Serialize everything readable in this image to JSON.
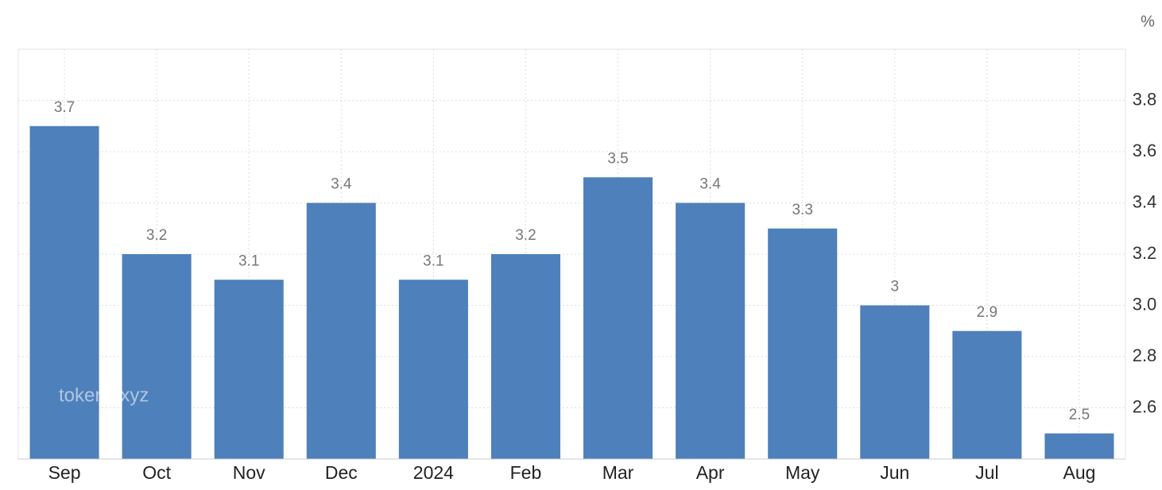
{
  "chart_data": {
    "type": "bar",
    "unit": "%",
    "watermark": "tokenx.xyz",
    "categories": [
      "Sep",
      "Oct",
      "Nov",
      "Dec",
      "2024",
      "Feb",
      "Mar",
      "Apr",
      "May",
      "Jun",
      "Jul",
      "Aug"
    ],
    "values": [
      3.7,
      3.2,
      3.1,
      3.4,
      3.1,
      3.2,
      3.5,
      3.4,
      3.3,
      3,
      2.9,
      2.5
    ],
    "color": "#4e80bb",
    "ylim": [
      2.4,
      4.0
    ],
    "yticks": [
      2.6,
      2.8,
      {
        "value": 3,
        "label": "3.0"
      },
      3.2,
      3.4,
      3.6,
      3.8
    ],
    "grid": true
  }
}
